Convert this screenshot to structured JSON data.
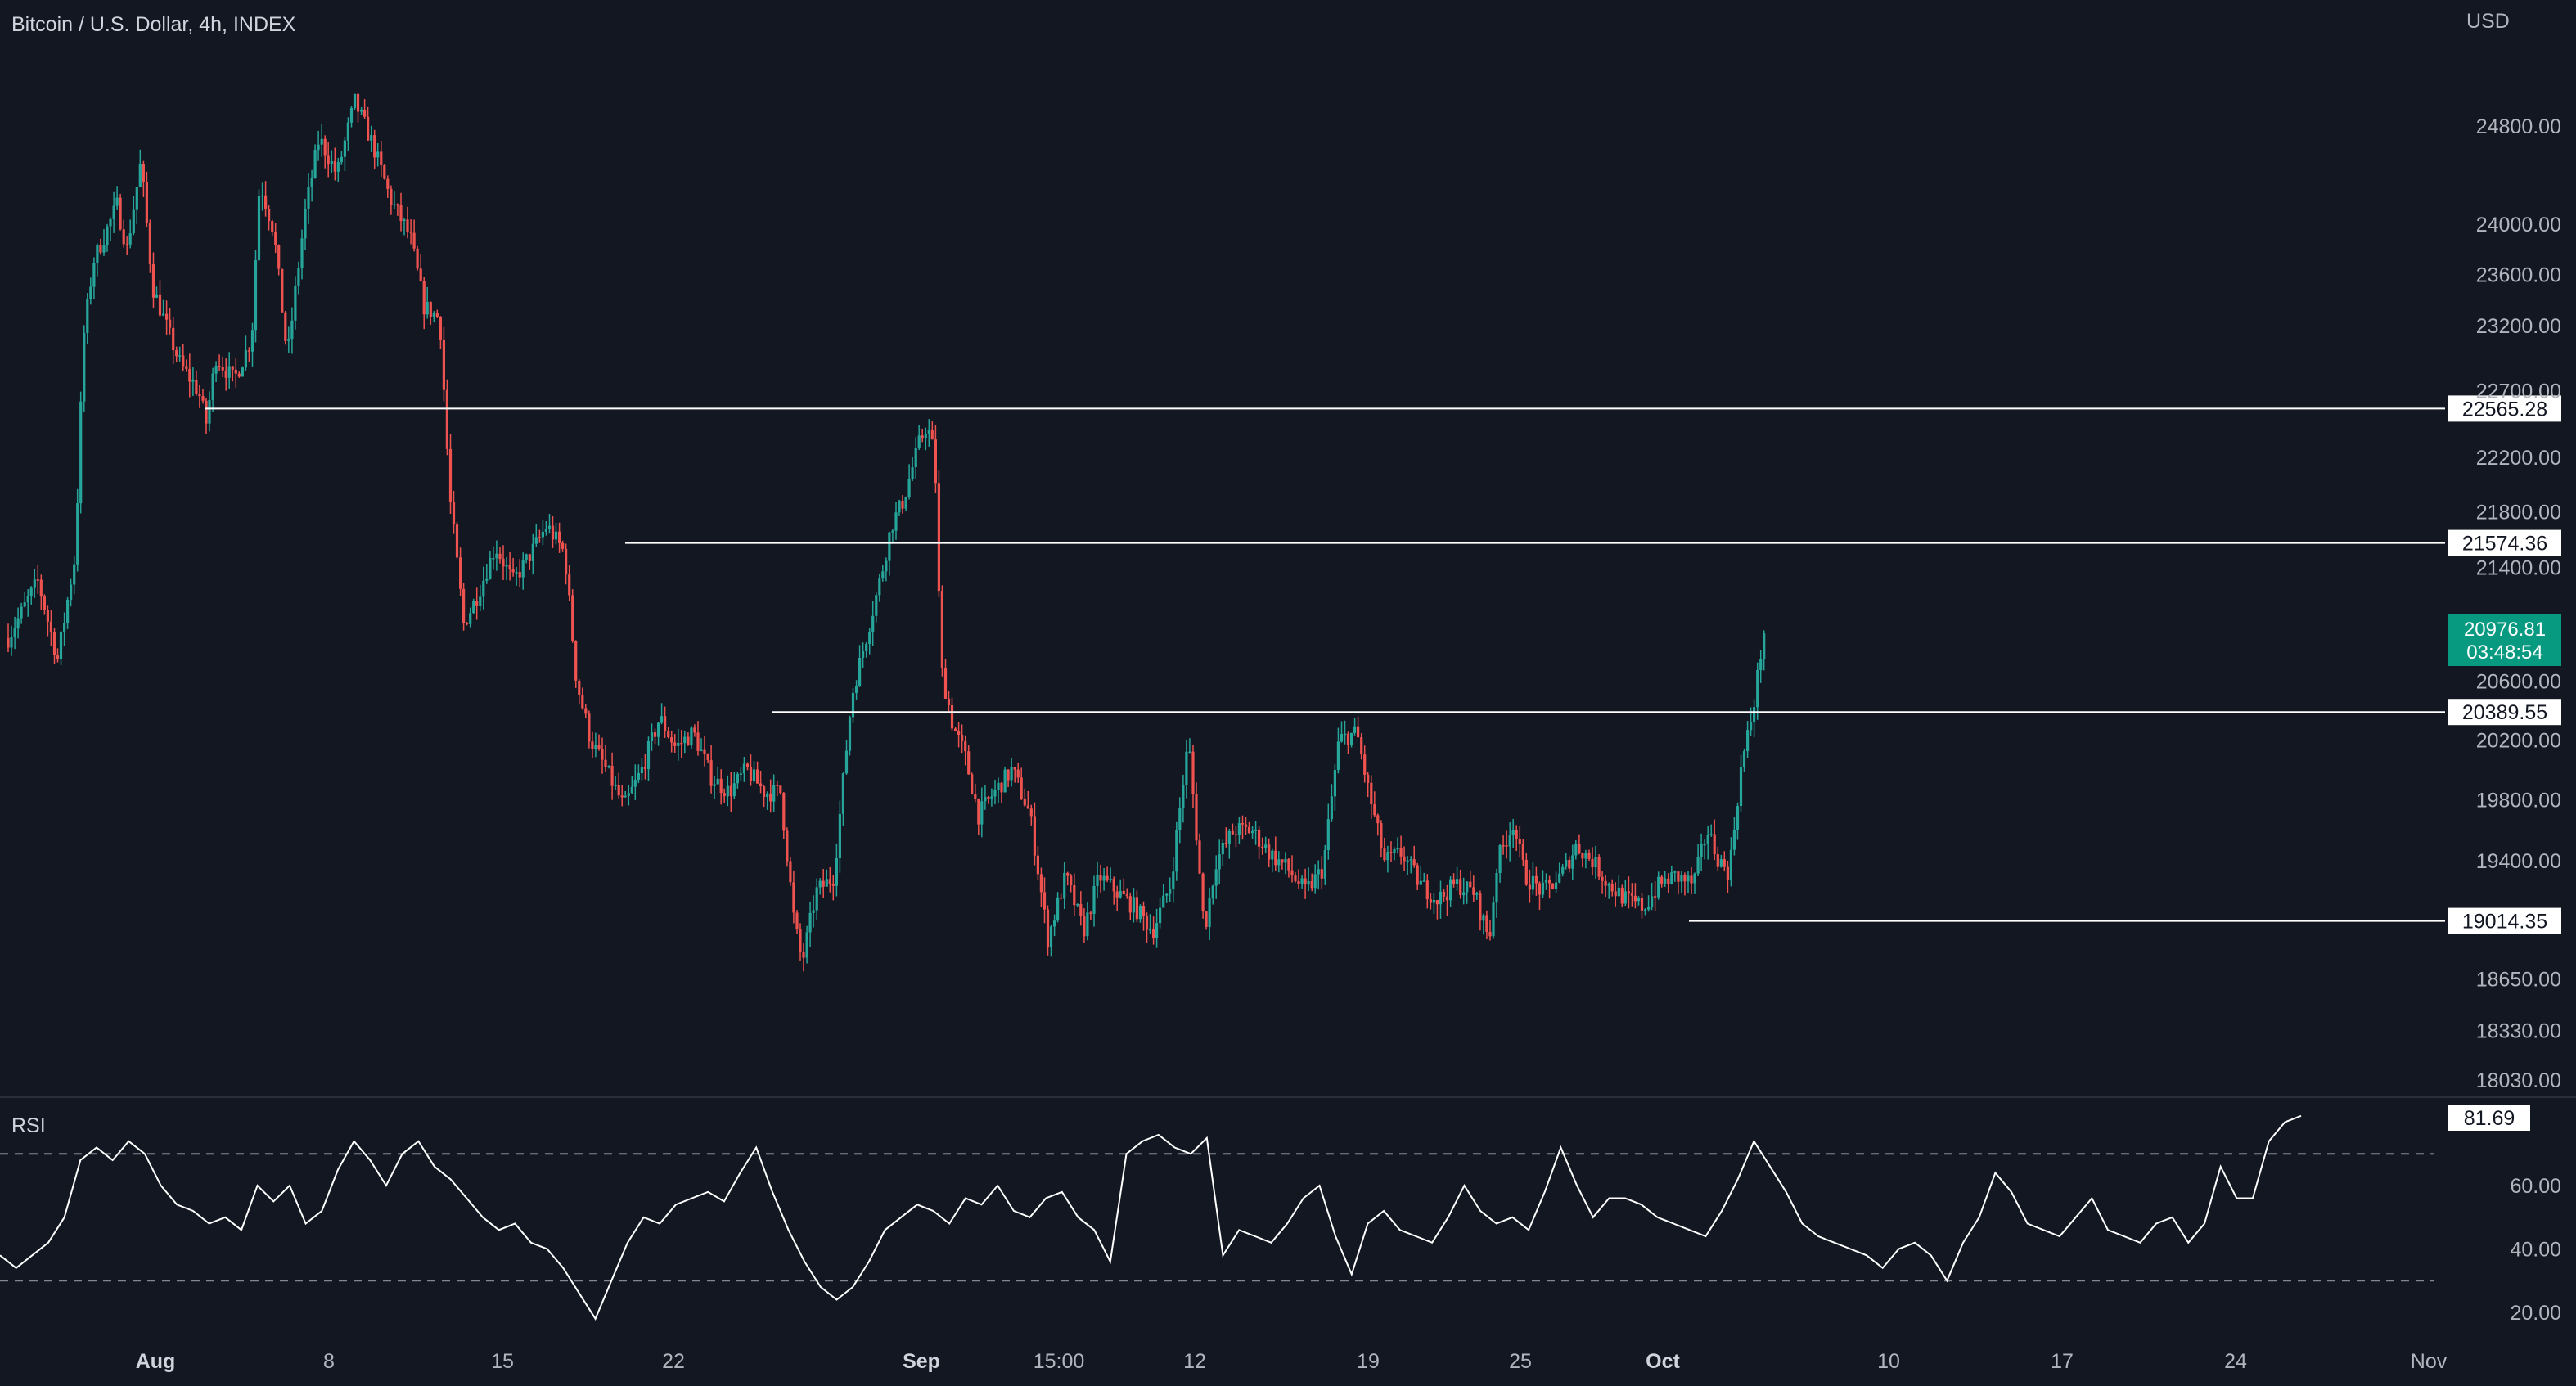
{
  "header": {
    "title": "Bitcoin / U.S. Dollar, 4h, INDEX",
    "currency": "USD"
  },
  "colors": {
    "background": "#131722",
    "up": "#26a69a",
    "down": "#ef5350",
    "level_line": "#ffffff",
    "rsi_line": "#ffffff",
    "current_price_bg": "#089981"
  },
  "chart_data": [
    {
      "type": "candlestick",
      "title": "Bitcoin / U.S. Dollar, 4h, INDEX",
      "interval": "4h",
      "yaxis_unit": "USD",
      "scale": "log",
      "y_ticks": [
        24800.0,
        24000.0,
        23600.0,
        23200.0,
        22700.0,
        22200.0,
        21800.0,
        21400.0,
        20600.0,
        20200.0,
        19800.0,
        19400.0,
        18650.0,
        18330.0,
        18030.0
      ],
      "x_ticks": [
        {
          "label": "Aug",
          "bold": true
        },
        {
          "label": "8"
        },
        {
          "label": "15"
        },
        {
          "label": "22"
        },
        {
          "label": "Sep",
          "bold": true
        },
        {
          "label": "15:00"
        },
        {
          "label": "12"
        },
        {
          "label": "19"
        },
        {
          "label": "25"
        },
        {
          "label": "Oct",
          "bold": true
        },
        {
          "label": "10"
        },
        {
          "label": "17"
        },
        {
          "label": "24"
        },
        {
          "label": "Nov"
        }
      ],
      "levels": [
        {
          "value": "22565.28",
          "price": 22565.28
        },
        {
          "value": "21574.36",
          "price": 21574.36
        },
        {
          "value": "20389.55",
          "price": 20389.55
        },
        {
          "value": "19014.35",
          "price": 19014.35
        }
      ],
      "current_price": {
        "value": "20976.81",
        "countdown": "03:48:54"
      },
      "series_path": [
        [
          0,
          20900
        ],
        [
          1.5,
          21300
        ],
        [
          2.5,
          20750
        ],
        [
          3.4,
          21500
        ],
        [
          3.8,
          23100
        ],
        [
          4.3,
          23700
        ],
        [
          5.5,
          24150
        ],
        [
          6,
          23800
        ],
        [
          6.7,
          24500
        ],
        [
          7.3,
          23500
        ],
        [
          8.2,
          23100
        ],
        [
          8.7,
          22900
        ],
        [
          9.6,
          22700
        ],
        [
          10,
          22460
        ],
        [
          10.5,
          22960
        ],
        [
          11.4,
          22780
        ],
        [
          12.3,
          23100
        ],
        [
          12.7,
          24350
        ],
        [
          13.4,
          23950
        ],
        [
          14.1,
          22950
        ],
        [
          15,
          24100
        ],
        [
          15.7,
          24700
        ],
        [
          16.6,
          24400
        ],
        [
          17.5,
          25000
        ],
        [
          18.4,
          24650
        ],
        [
          19.3,
          24200
        ],
        [
          20.3,
          23900
        ],
        [
          21,
          23350
        ],
        [
          21.8,
          23250
        ],
        [
          22.3,
          21900
        ],
        [
          23,
          21000
        ],
        [
          23.7,
          21200
        ],
        [
          24.6,
          21550
        ],
        [
          25.5,
          21300
        ],
        [
          26.4,
          21500
        ],
        [
          27.2,
          21700
        ],
        [
          28.1,
          21500
        ],
        [
          28.7,
          20600
        ],
        [
          29.4,
          20200
        ],
        [
          30.2,
          20000
        ],
        [
          31.1,
          19750
        ],
        [
          32,
          20000
        ],
        [
          32.9,
          20350
        ],
        [
          33.7,
          20150
        ],
        [
          34.6,
          20250
        ],
        [
          35.5,
          19950
        ],
        [
          36.4,
          19850
        ],
        [
          37.3,
          20000
        ],
        [
          38.2,
          19850
        ],
        [
          39,
          19850
        ],
        [
          39.7,
          19000
        ],
        [
          40.1,
          18750
        ],
        [
          40.8,
          19200
        ],
        [
          41.7,
          19300
        ],
        [
          42.6,
          20500
        ],
        [
          43.5,
          21000
        ],
        [
          44.1,
          21350
        ],
        [
          44.6,
          21700
        ],
        [
          45.2,
          21880
        ],
        [
          46,
          22300
        ],
        [
          46.4,
          22450
        ],
        [
          46.8,
          22200
        ],
        [
          47.1,
          20700
        ],
        [
          47.7,
          20300
        ],
        [
          48.3,
          20100
        ],
        [
          49,
          19700
        ],
        [
          49.8,
          19850
        ],
        [
          50.7,
          20000
        ],
        [
          51.6,
          19700
        ],
        [
          52.5,
          18900
        ],
        [
          53.4,
          19300
        ],
        [
          54.3,
          18950
        ],
        [
          55.1,
          19300
        ],
        [
          56,
          19200
        ],
        [
          56.9,
          19100
        ],
        [
          57.8,
          18950
        ],
        [
          58.7,
          19250
        ],
        [
          59.6,
          20200
        ],
        [
          60.4,
          18950
        ],
        [
          61,
          19400
        ],
        [
          61.9,
          19600
        ],
        [
          62.8,
          19600
        ],
        [
          63.7,
          19450
        ],
        [
          64.6,
          19350
        ],
        [
          65.5,
          19200
        ],
        [
          66.4,
          19350
        ],
        [
          67.2,
          20200
        ],
        [
          68.1,
          20250
        ],
        [
          68.7,
          19850
        ],
        [
          69.5,
          19400
        ],
        [
          70.4,
          19450
        ],
        [
          71.3,
          19250
        ],
        [
          72.2,
          19150
        ],
        [
          73.1,
          19250
        ],
        [
          74,
          19200
        ],
        [
          74.8,
          18900
        ],
        [
          75.2,
          19400
        ],
        [
          76,
          19650
        ],
        [
          76.6,
          19300
        ],
        [
          77.5,
          19200
        ],
        [
          78.4,
          19300
        ],
        [
          79.2,
          19500
        ],
        [
          80,
          19400
        ],
        [
          80.8,
          19250
        ],
        [
          81.7,
          19150
        ],
        [
          82.6,
          19100
        ],
        [
          83.4,
          19250
        ],
        [
          84.2,
          19300
        ],
        [
          85.1,
          19250
        ],
        [
          85.8,
          19600
        ],
        [
          86.4,
          19400
        ],
        [
          86.9,
          19320
        ],
        [
          87.5,
          20000
        ],
        [
          88.1,
          20400
        ],
        [
          88.7,
          20980
        ]
      ],
      "rsi": {
        "label": "RSI",
        "value": "81.69",
        "current": 81.69,
        "y_ticks": [
          60.0,
          40.0,
          20.0
        ],
        "bands": [
          70,
          30
        ],
        "values": [
          38,
          34,
          38,
          42,
          50,
          68,
          72,
          68,
          74,
          70,
          60,
          54,
          52,
          48,
          50,
          46,
          60,
          55,
          60,
          48,
          52,
          65,
          74,
          68,
          60,
          70,
          74,
          66,
          62,
          56,
          50,
          46,
          48,
          42,
          40,
          34,
          26,
          18,
          30,
          42,
          50,
          48,
          54,
          56,
          58,
          55,
          64,
          72,
          58,
          46,
          36,
          28,
          24,
          28,
          36,
          46,
          50,
          54,
          52,
          48,
          56,
          54,
          60,
          52,
          50,
          56,
          58,
          50,
          46,
          36,
          70,
          74,
          76,
          72,
          70,
          75,
          38,
          46,
          44,
          42,
          48,
          56,
          60,
          44,
          32,
          48,
          52,
          46,
          44,
          42,
          50,
          60,
          52,
          48,
          50,
          46,
          58,
          72,
          60,
          50,
          56,
          56,
          54,
          50,
          48,
          46,
          44,
          52,
          62,
          74,
          66,
          58,
          48,
          44,
          42,
          40,
          38,
          34,
          40,
          42,
          38,
          30,
          42,
          50,
          64,
          58,
          48,
          46,
          44,
          50,
          56,
          46,
          44,
          42,
          48,
          50,
          42,
          48,
          66,
          56,
          56,
          74,
          80,
          82
        ]
      }
    }
  ]
}
